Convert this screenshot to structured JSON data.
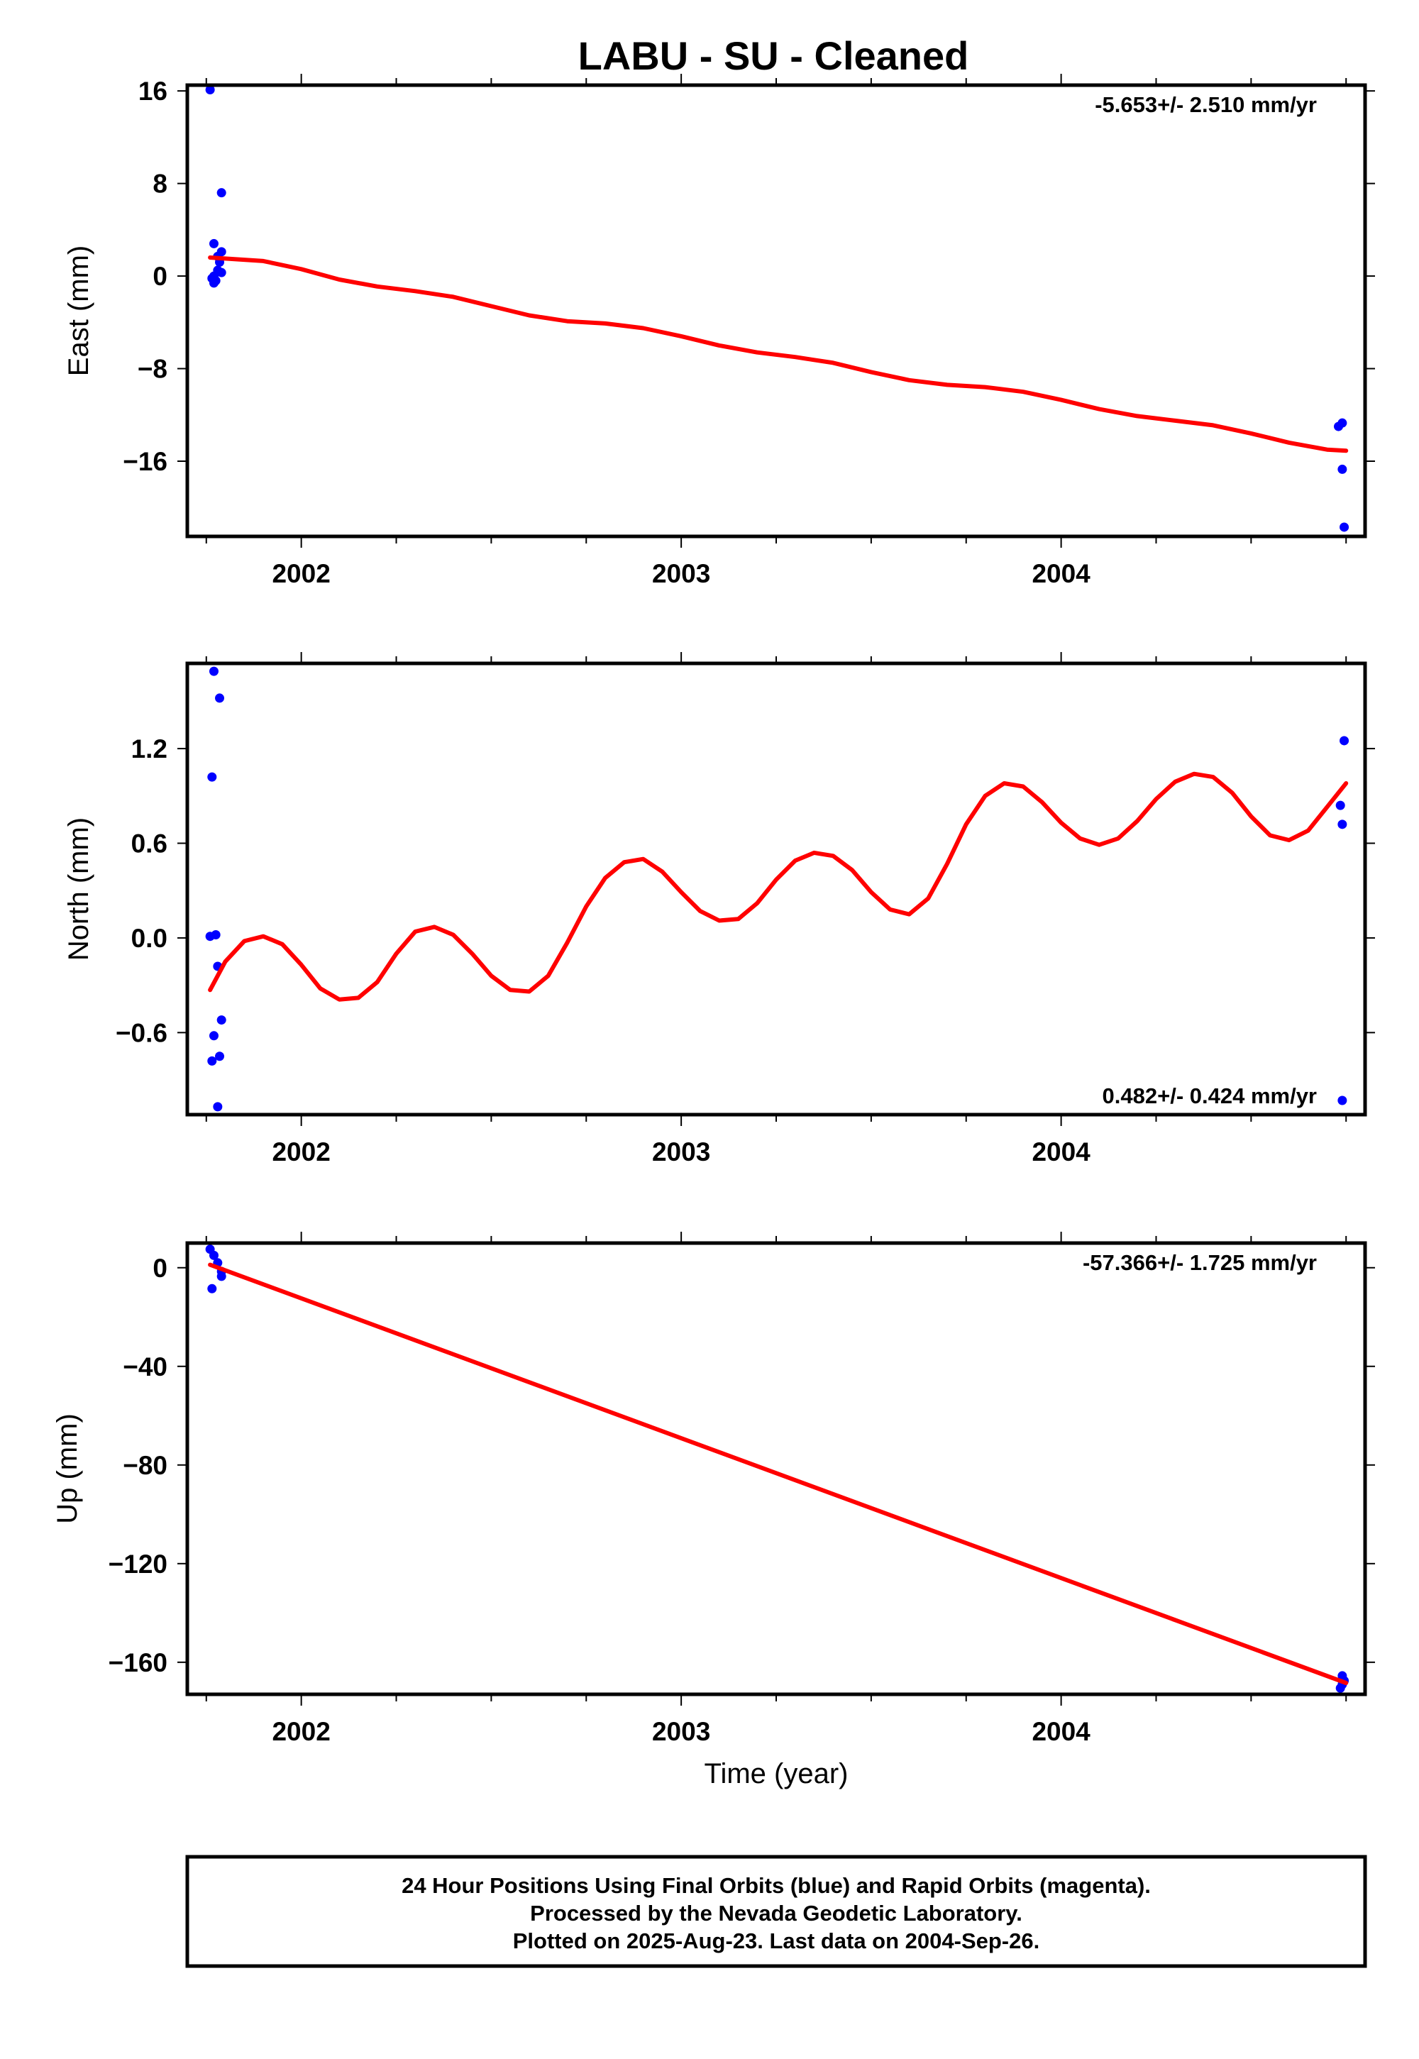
{
  "title": "LABU  - SU - Cleaned",
  "footer": {
    "lines": [
      "24 Hour Positions Using Final Orbits (blue) and Rapid Orbits (magenta).",
      "Processed by the Nevada Geodetic Laboratory.",
      "Plotted on 2025-Aug-23. Last data on 2004-Sep-26."
    ]
  },
  "colors": {
    "data_points": "#0000ff",
    "model_fit": "#ff0000",
    "frame": "#000000"
  },
  "chart_data": [
    {
      "type": "scatter",
      "ylabel": "East (mm)",
      "xlabel": "",
      "xlim": [
        2001.7,
        2004.8
      ],
      "ylim": [
        -22.5,
        16.5
      ],
      "x_ticks": [
        2002,
        2003,
        2004
      ],
      "x_tick_labels": [
        "2002",
        "2003",
        "2004"
      ],
      "y_ticks": [
        16,
        8,
        0,
        -8,
        -16
      ],
      "y_tick_labels": [
        "16",
        "8",
        "0",
        "−8",
        "−16"
      ],
      "rate_label": "-5.653+/- 2.510 mm/yr",
      "rate_position": "top-right",
      "points": [
        [
          2001.76,
          16.1
        ],
        [
          2001.79,
          7.2
        ],
        [
          2001.77,
          2.8
        ],
        [
          2001.79,
          2.1
        ],
        [
          2001.78,
          1.7
        ],
        [
          2001.785,
          1.2
        ],
        [
          2001.78,
          0.5
        ],
        [
          2001.79,
          0.3
        ],
        [
          2001.77,
          0.0
        ],
        [
          2001.765,
          -0.2
        ],
        [
          2001.775,
          -0.4
        ],
        [
          2001.77,
          -0.6
        ],
        [
          2004.73,
          -13.0
        ],
        [
          2004.74,
          -12.7
        ],
        [
          2004.74,
          -16.7
        ],
        [
          2004.745,
          -21.7
        ]
      ],
      "model": [
        [
          2001.76,
          1.6
        ],
        [
          2001.9,
          1.3
        ],
        [
          2002.0,
          0.6
        ],
        [
          2002.1,
          -0.3
        ],
        [
          2002.2,
          -0.9
        ],
        [
          2002.3,
          -1.3
        ],
        [
          2002.4,
          -1.8
        ],
        [
          2002.5,
          -2.6
        ],
        [
          2002.6,
          -3.4
        ],
        [
          2002.7,
          -3.9
        ],
        [
          2002.8,
          -4.1
        ],
        [
          2002.9,
          -4.5
        ],
        [
          2003.0,
          -5.2
        ],
        [
          2003.1,
          -6.0
        ],
        [
          2003.2,
          -6.6
        ],
        [
          2003.3,
          -7.0
        ],
        [
          2003.4,
          -7.5
        ],
        [
          2003.5,
          -8.3
        ],
        [
          2003.6,
          -9.0
        ],
        [
          2003.7,
          -9.4
        ],
        [
          2003.8,
          -9.6
        ],
        [
          2003.9,
          -10.0
        ],
        [
          2004.0,
          -10.7
        ],
        [
          2004.1,
          -11.5
        ],
        [
          2004.2,
          -12.1
        ],
        [
          2004.3,
          -12.5
        ],
        [
          2004.4,
          -12.9
        ],
        [
          2004.5,
          -13.6
        ],
        [
          2004.6,
          -14.4
        ],
        [
          2004.7,
          -15.0
        ],
        [
          2004.75,
          -15.1
        ]
      ]
    },
    {
      "type": "scatter",
      "ylabel": "North (mm)",
      "xlabel": "",
      "xlim": [
        2001.7,
        2004.8
      ],
      "ylim": [
        -1.12,
        1.74
      ],
      "x_ticks": [
        2002,
        2003,
        2004
      ],
      "x_tick_labels": [
        "2002",
        "2003",
        "2004"
      ],
      "y_ticks": [
        1.2,
        0.6,
        0.0,
        -0.6
      ],
      "y_tick_labels": [
        "1.2",
        "0.6",
        "0.0",
        "−0.6"
      ],
      "rate_label": "0.482+/- 0.424 mm/yr",
      "rate_position": "bottom-right",
      "points": [
        [
          2001.77,
          1.69
        ],
        [
          2001.785,
          1.52
        ],
        [
          2001.765,
          1.02
        ],
        [
          2001.76,
          0.01
        ],
        [
          2001.775,
          0.02
        ],
        [
          2001.78,
          -0.18
        ],
        [
          2001.79,
          -0.52
        ],
        [
          2001.77,
          -0.62
        ],
        [
          2001.785,
          -0.75
        ],
        [
          2001.765,
          -0.78
        ],
        [
          2001.78,
          -1.07
        ],
        [
          2004.745,
          1.25
        ],
        [
          2004.735,
          0.84
        ],
        [
          2004.74,
          0.72
        ],
        [
          2004.74,
          -1.03
        ]
      ],
      "model": [
        [
          2001.76,
          -0.33
        ],
        [
          2001.8,
          -0.15
        ],
        [
          2001.85,
          -0.02
        ],
        [
          2001.9,
          0.01
        ],
        [
          2001.95,
          -0.04
        ],
        [
          2002.0,
          -0.17
        ],
        [
          2002.05,
          -0.32
        ],
        [
          2002.1,
          -0.39
        ],
        [
          2002.15,
          -0.38
        ],
        [
          2002.2,
          -0.28
        ],
        [
          2002.25,
          -0.1
        ],
        [
          2002.3,
          0.04
        ],
        [
          2002.35,
          0.07
        ],
        [
          2002.4,
          0.02
        ],
        [
          2002.45,
          -0.1
        ],
        [
          2002.5,
          -0.24
        ],
        [
          2002.55,
          -0.33
        ],
        [
          2002.6,
          -0.34
        ],
        [
          2002.65,
          -0.24
        ],
        [
          2002.7,
          -0.03
        ],
        [
          2002.75,
          0.2
        ],
        [
          2002.8,
          0.38
        ],
        [
          2002.85,
          0.48
        ],
        [
          2002.9,
          0.5
        ],
        [
          2002.95,
          0.42
        ],
        [
          2003.0,
          0.29
        ],
        [
          2003.05,
          0.17
        ],
        [
          2003.1,
          0.11
        ],
        [
          2003.15,
          0.12
        ],
        [
          2003.2,
          0.22
        ],
        [
          2003.25,
          0.37
        ],
        [
          2003.3,
          0.49
        ],
        [
          2003.35,
          0.54
        ],
        [
          2003.4,
          0.52
        ],
        [
          2003.45,
          0.43
        ],
        [
          2003.5,
          0.29
        ],
        [
          2003.55,
          0.18
        ],
        [
          2003.6,
          0.15
        ],
        [
          2003.65,
          0.25
        ],
        [
          2003.7,
          0.47
        ],
        [
          2003.75,
          0.72
        ],
        [
          2003.8,
          0.9
        ],
        [
          2003.85,
          0.98
        ],
        [
          2003.9,
          0.96
        ],
        [
          2003.95,
          0.86
        ],
        [
          2004.0,
          0.73
        ],
        [
          2004.05,
          0.63
        ],
        [
          2004.1,
          0.59
        ],
        [
          2004.15,
          0.63
        ],
        [
          2004.2,
          0.74
        ],
        [
          2004.25,
          0.88
        ],
        [
          2004.3,
          0.99
        ],
        [
          2004.35,
          1.04
        ],
        [
          2004.4,
          1.02
        ],
        [
          2004.45,
          0.92
        ],
        [
          2004.5,
          0.77
        ],
        [
          2004.55,
          0.65
        ],
        [
          2004.6,
          0.62
        ],
        [
          2004.65,
          0.68
        ],
        [
          2004.7,
          0.83
        ],
        [
          2004.75,
          0.98
        ]
      ]
    },
    {
      "type": "scatter",
      "ylabel": "Up (mm)",
      "xlabel": "Time (year)",
      "xlim": [
        2001.7,
        2004.8
      ],
      "ylim": [
        -173,
        10
      ],
      "x_ticks": [
        2002,
        2003,
        2004
      ],
      "x_tick_labels": [
        "2002",
        "2003",
        "2004"
      ],
      "y_ticks": [
        0,
        -40,
        -80,
        -120,
        -160
      ],
      "y_tick_labels": [
        "0",
        "−40",
        "−80",
        "−120",
        "−160"
      ],
      "rate_label": "-57.366+/- 1.725 mm/yr",
      "rate_position": "top-right",
      "points": [
        [
          2001.76,
          7.5
        ],
        [
          2001.77,
          5.0
        ],
        [
          2001.78,
          2.0
        ],
        [
          2001.79,
          -1.5
        ],
        [
          2001.79,
          -3.5
        ],
        [
          2001.765,
          -8.5
        ],
        [
          2004.74,
          -165.5
        ],
        [
          2004.745,
          -167.5
        ],
        [
          2004.74,
          -169.0
        ],
        [
          2004.735,
          -170.5
        ]
      ],
      "model": [
        [
          2001.76,
          1.2
        ],
        [
          2004.75,
          -168.4
        ]
      ]
    }
  ]
}
